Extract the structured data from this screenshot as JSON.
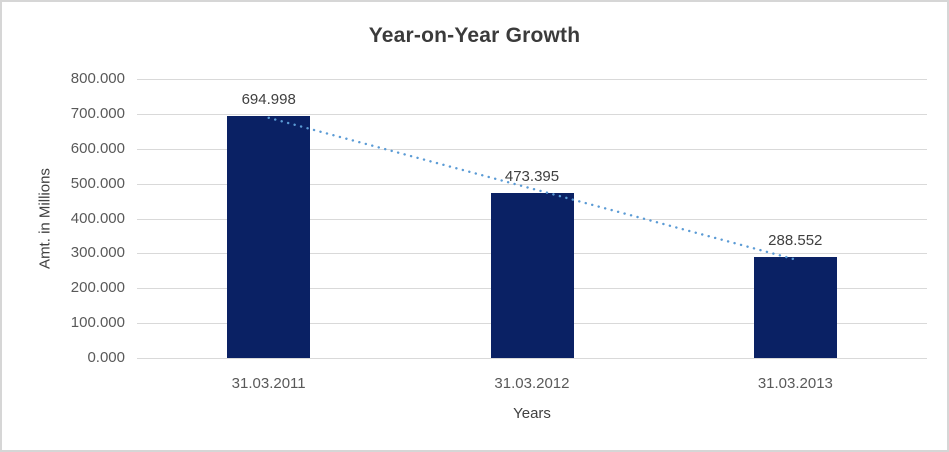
{
  "chart_data": {
    "type": "bar",
    "title": "Year-on-Year Growth",
    "xlabel": "Years",
    "ylabel": "Amt. in Millions",
    "categories": [
      "31.03.2011",
      "31.03.2012",
      "31.03.2013"
    ],
    "values": [
      694.998,
      473.395,
      288.552
    ],
    "data_labels": [
      "694.998",
      "473.395",
      "288.552"
    ],
    "y_ticks": [
      "800.000",
      "700.000",
      "600.000",
      "500.000",
      "400.000",
      "300.000",
      "200.000",
      "100.000",
      "0.000"
    ],
    "ylim": [
      0,
      800
    ],
    "y_step": 100,
    "grid": true,
    "legend": "none",
    "trendline": {
      "type": "linear",
      "style": "dotted",
      "series": "values"
    },
    "colors": {
      "bar": "#0a2164",
      "trendline": "#5b9bd5",
      "gridline": "#d9d9d9",
      "tick_label": "#595959",
      "data_label": "#404040",
      "axis_title": "#404040",
      "title": "#3b3b3b",
      "background": "#ffffff",
      "frame_border": "#d6d6d6"
    }
  }
}
